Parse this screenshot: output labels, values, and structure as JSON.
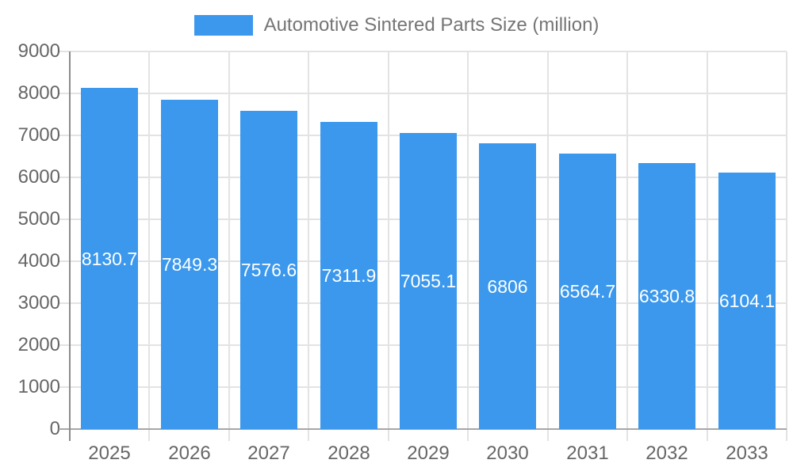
{
  "legend": {
    "label": "Automotive Sintered Parts Size (million)"
  },
  "colors": {
    "bar": "#3B98EC",
    "grid": "#e3e3e3",
    "axis_line": "#8c8c8c",
    "baseline": "#a6a6a6",
    "axis_text": "#666666",
    "legend_text": "#757575",
    "bar_label_text": "#ffffff",
    "background": "#ffffff"
  },
  "chart_data": {
    "type": "bar",
    "title": "Automotive Sintered Parts Size (million)",
    "categories": [
      "2025",
      "2026",
      "2027",
      "2028",
      "2029",
      "2030",
      "2031",
      "2032",
      "2033"
    ],
    "values": [
      8130.7,
      7849.3,
      7576.6,
      7311.9,
      7055.1,
      6806,
      6564.7,
      6330.8,
      6104.1
    ],
    "value_labels": [
      "8130.7",
      "7849.3",
      "7576.6",
      "7311.9",
      "7055.1",
      "6806",
      "6564.7",
      "6330.8",
      "6104.1"
    ],
    "series_name": "Automotive Sintered Parts Size (million)",
    "xlabel": "",
    "ylabel": "",
    "ylim": [
      0,
      9000
    ],
    "ytick_step": 1000,
    "yticks": [
      "0",
      "1000",
      "2000",
      "3000",
      "4000",
      "5000",
      "6000",
      "7000",
      "8000",
      "9000"
    ],
    "grid": true,
    "legend_position": "top",
    "value_label_position": "center"
  }
}
